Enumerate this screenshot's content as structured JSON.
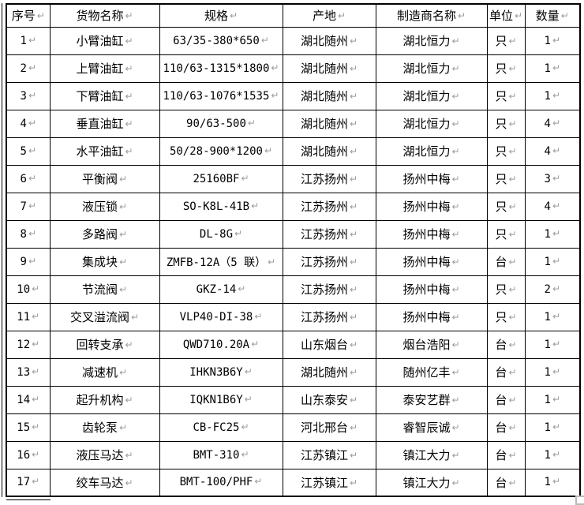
{
  "table": {
    "return_mark": "↵",
    "columns": [
      "序号",
      "货物名称",
      "规格",
      "产地",
      "制造商名称",
      "单位",
      "数量"
    ],
    "rows": [
      {
        "no": "1",
        "name": "小臂油缸",
        "spec": "63/35-380*650",
        "origin": "湖北随州",
        "manufacturer": "湖北恒力",
        "unit": "只",
        "qty": "1"
      },
      {
        "no": "2",
        "name": "上臂油缸",
        "spec": "110/63-1315*1800",
        "origin": "湖北随州",
        "manufacturer": "湖北恒力",
        "unit": "只",
        "qty": "1"
      },
      {
        "no": "3",
        "name": "下臂油缸",
        "spec": "110/63-1076*1535",
        "origin": "湖北随州",
        "manufacturer": "湖北恒力",
        "unit": "只",
        "qty": "1"
      },
      {
        "no": "4",
        "name": "垂直油缸",
        "spec": "90/63-500",
        "origin": "湖北随州",
        "manufacturer": "湖北恒力",
        "unit": "只",
        "qty": "4"
      },
      {
        "no": "5",
        "name": "水平油缸",
        "spec": "50/28-900*1200",
        "origin": "湖北随州",
        "manufacturer": "湖北恒力",
        "unit": "只",
        "qty": "4"
      },
      {
        "no": "6",
        "name": "平衡阀",
        "spec": "25160BF",
        "origin": "江苏扬州",
        "manufacturer": "扬州中梅",
        "unit": "只",
        "qty": "3"
      },
      {
        "no": "7",
        "name": "液压锁",
        "spec": "SO-K8L-41B",
        "origin": "江苏扬州",
        "manufacturer": "扬州中梅",
        "unit": "只",
        "qty": "4"
      },
      {
        "no": "8",
        "name": "多路阀",
        "spec": "DL-8G",
        "origin": "江苏扬州",
        "manufacturer": "扬州中梅",
        "unit": "只",
        "qty": "1"
      },
      {
        "no": "9",
        "name": "集成块",
        "spec": "ZMFB-12A（5 联）",
        "origin": "江苏扬州",
        "manufacturer": "扬州中梅",
        "unit": "台",
        "qty": "1"
      },
      {
        "no": "10",
        "name": "节流阀",
        "spec": "GKZ-14",
        "origin": "江苏扬州",
        "manufacturer": "扬州中梅",
        "unit": "只",
        "qty": "2"
      },
      {
        "no": "11",
        "name": "交叉溢流阀",
        "spec": "VLP40-DI-38",
        "origin": "江苏扬州",
        "manufacturer": "扬州中梅",
        "unit": "只",
        "qty": "1"
      },
      {
        "no": "12",
        "name": "回转支承",
        "spec": "QWD710.20A",
        "origin": "山东烟台",
        "manufacturer": "烟台浩阳",
        "unit": "台",
        "qty": "1"
      },
      {
        "no": "13",
        "name": "减速机",
        "spec": "IHKN3B6Y",
        "origin": "湖北随州",
        "manufacturer": "随州亿丰",
        "unit": "台",
        "qty": "1"
      },
      {
        "no": "14",
        "name": "起升机构",
        "spec": "IQKN1B6Y",
        "origin": "山东泰安",
        "manufacturer": "泰安艺群",
        "unit": "台",
        "qty": "1"
      },
      {
        "no": "15",
        "name": "齿轮泵",
        "spec": "CB-FC25",
        "origin": "河北邢台",
        "manufacturer": "睿智辰诚",
        "unit": "台",
        "qty": "1"
      },
      {
        "no": "16",
        "name": "液压马达",
        "spec": "BMT-310",
        "origin": "江苏镇江",
        "manufacturer": "镇江大力",
        "unit": "台",
        "qty": "1"
      },
      {
        "no": "17",
        "name": "绞车马达",
        "spec": "BMT-100/PHF",
        "origin": "江苏镇江",
        "manufacturer": "镇江大力",
        "unit": "台",
        "qty": "1"
      }
    ]
  },
  "colors": {
    "border": "#000000",
    "text": "#000000",
    "return_mark": "#9c9c9c",
    "background": "#ffffff"
  }
}
